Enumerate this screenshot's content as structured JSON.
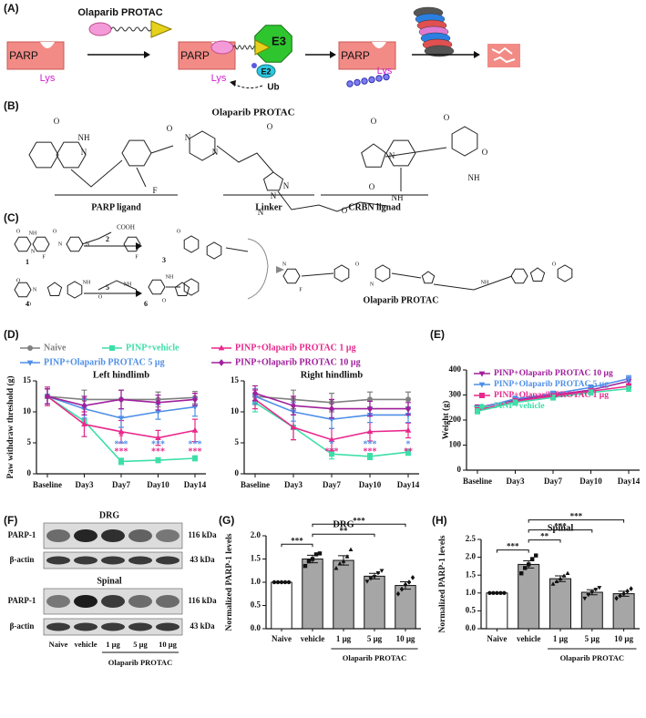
{
  "figure": {
    "panel_labels": [
      "(A)",
      "(B)",
      "(C)",
      "(D)",
      "(E)",
      "(F)",
      "(G)",
      "(H)"
    ],
    "scheme_a": {
      "protac_label": "Olaparib PROTAC",
      "parp": [
        "PARP",
        "PARP",
        "PARP"
      ],
      "lys": [
        "Lys",
        "Lys",
        "Lys"
      ],
      "e3": "E3",
      "e2": "E2",
      "ub": "Ub"
    },
    "structure_b": {
      "title": "Olaparib PROTAC",
      "parts": [
        "PARP ligand",
        "Linker",
        "CRBN lignad"
      ],
      "atoms": [
        "O",
        "NH",
        "N",
        "O",
        "N",
        "N",
        "F",
        "O",
        "N",
        "N",
        "N",
        "O",
        "NH",
        "O",
        "N",
        "O",
        "O",
        "NH",
        "O"
      ]
    },
    "synthesis_c": {
      "compounds": [
        "1",
        "2",
        "3",
        "4",
        "5",
        "6"
      ],
      "groups": [
        "COOH"
      ],
      "product": "Olaparib PROTAC",
      "atoms": [
        "O",
        "NH",
        "N",
        "F",
        "O",
        "N",
        "N",
        "F",
        "O",
        "O",
        "N",
        "O",
        "NH",
        "O",
        "NH",
        "NH",
        "O",
        "N",
        "F",
        "O",
        "N",
        "NH",
        "O"
      ]
    },
    "blot_f": {
      "sections": [
        "DRG",
        "Spinal"
      ],
      "proteins": [
        "PARP-1",
        "β-actin",
        "PARP-1",
        "β-actin"
      ],
      "sizes": [
        "116 kDa",
        "43 kDa",
        "116 kDa",
        "43 kDa"
      ],
      "lanes": [
        "Naive",
        "vehicle",
        "1 μg",
        "5 μg",
        "10 μg"
      ],
      "group_label": "Olaparib PROTAC"
    }
  },
  "chart_data": [
    {
      "type": "line",
      "title": "Left hindlimb",
      "y_label": "Paw withdraw threshold (g)",
      "legend": "above",
      "categories": [
        "Baseline",
        "Day3",
        "Day7",
        "Day10",
        "Day14"
      ],
      "ylim": [
        0,
        15
      ],
      "yticks": [
        0,
        5,
        10,
        15
      ],
      "series": [
        {
          "name": "Naive",
          "color": "#808080",
          "marker": "circle",
          "values": [
            12.5,
            12,
            12,
            12,
            12.3
          ],
          "errors": [
            1.2,
            1.5,
            1.5,
            1.2,
            1
          ]
        },
        {
          "name": "PINP+vehicle",
          "color": "#3ddfa8",
          "marker": "square",
          "values": [
            12.5,
            8.5,
            2,
            2.2,
            2.5
          ],
          "errors": [
            1.5,
            2.5,
            0.5,
            0.4,
            0.4
          ]
        },
        {
          "name": "PINP+Olaparib PROTAC 1 μg",
          "color": "#e8288c",
          "marker": "triangle",
          "values": [
            12.5,
            8,
            6.8,
            5.8,
            7
          ],
          "errors": [
            1.5,
            2,
            1.8,
            1.2,
            1.8
          ]
        },
        {
          "name": "PINP+Olaparib PROTAC 5 μg",
          "color": "#4f8fe8",
          "marker": "triangle-down",
          "values": [
            12.5,
            10.5,
            9,
            10,
            10.8
          ],
          "errors": [
            1.2,
            1.5,
            1.5,
            1.2,
            1.5
          ]
        },
        {
          "name": "PINP+Olaparib PROTAC 10 μg",
          "color": "#a0209c",
          "marker": "diamond",
          "values": [
            12.5,
            11,
            12,
            11.5,
            12
          ],
          "errors": [
            1.2,
            1.5,
            1.5,
            1.2,
            1
          ]
        }
      ],
      "annotations": [
        {
          "category": "Day7",
          "text": "*",
          "color": "#e8288c"
        },
        {
          "category": "Day7",
          "text": "***",
          "color": "#4f8fe8"
        },
        {
          "category": "Day7",
          "text": "***",
          "color": "#e8288c"
        },
        {
          "category": "Day10",
          "text": "***",
          "color": "#4f8fe8"
        },
        {
          "category": "Day10",
          "text": "***",
          "color": "#e8288c"
        },
        {
          "category": "Day14",
          "text": "***",
          "color": "#4f8fe8"
        },
        {
          "category": "Day14",
          "text": "***",
          "color": "#e8288c"
        }
      ]
    },
    {
      "type": "line",
      "title": "Right hindlimb",
      "categories": [
        "Baseline",
        "Day3",
        "Day7",
        "Day10",
        "Day14"
      ],
      "ylim": [
        0,
        15
      ],
      "yticks": [
        0,
        5,
        10,
        15
      ],
      "series": [
        {
          "color": "#808080",
          "marker": "circle",
          "values": [
            12.5,
            12,
            11.5,
            12,
            12
          ],
          "errors": [
            1.2,
            1.5,
            1.5,
            1.2,
            1.2
          ]
        },
        {
          "color": "#3ddfa8",
          "marker": "square",
          "values": [
            11.5,
            7.5,
            3.2,
            2.8,
            3.5
          ],
          "errors": [
            1.5,
            2,
            0.8,
            0.5,
            0.5
          ]
        },
        {
          "color": "#e8288c",
          "marker": "triangle",
          "values": [
            12,
            7.5,
            5.5,
            6.8,
            7
          ],
          "errors": [
            1.5,
            2,
            1.8,
            1.5,
            1.2
          ]
        },
        {
          "color": "#4f8fe8",
          "marker": "triangle-down",
          "values": [
            12.5,
            10,
            8.8,
            9.5,
            9.5
          ],
          "errors": [
            1.2,
            1.5,
            1.5,
            1.2,
            1.2
          ]
        },
        {
          "color": "#a0209c",
          "marker": "diamond",
          "values": [
            13,
            11,
            10.5,
            10.5,
            10.5
          ],
          "errors": [
            1.2,
            1.5,
            1.5,
            1.2,
            1
          ]
        }
      ],
      "annotations": [
        {
          "category": "Day7",
          "text": "*",
          "color": "#4f8fe8"
        },
        {
          "category": "Day7",
          "text": "***",
          "color": "#e8288c"
        },
        {
          "category": "Day10",
          "text": "***",
          "color": "#4f8fe8"
        },
        {
          "category": "Day10",
          "text": "***",
          "color": "#e8288c"
        },
        {
          "category": "Day14",
          "text": "*",
          "color": "#4f8fe8"
        },
        {
          "category": "Day14",
          "text": "**",
          "color": "#e8288c"
        }
      ]
    },
    {
      "type": "line",
      "y_label": "Weight (g)",
      "legend": "top-left",
      "categories": [
        "Baseline",
        "Day3",
        "Day7",
        "Day10",
        "Day14"
      ],
      "ylim": [
        0,
        400
      ],
      "yticks": [
        0,
        100,
        200,
        300,
        400
      ],
      "series": [
        {
          "name": "PINP+Olaparib PROTAC 10 μg",
          "color": "#a0209c",
          "marker": "triangle-down",
          "values": [
            250,
            280,
            300,
            320,
            355
          ],
          "errors": [
            10,
            10,
            10,
            10,
            12
          ]
        },
        {
          "name": "PINP+Olaparib PROTAC 5 μg",
          "color": "#4f8fe8",
          "marker": "triangle-down",
          "values": [
            245,
            285,
            305,
            330,
            365
          ],
          "errors": [
            10,
            10,
            10,
            10,
            12
          ]
        },
        {
          "name": "PINP+Olaparib PROTAC 1 μg",
          "color": "#e8288c",
          "marker": "square",
          "values": [
            240,
            275,
            295,
            315,
            335
          ],
          "errors": [
            10,
            10,
            10,
            10,
            10
          ]
        },
        {
          "name": "PINP+vehicle",
          "color": "#3ddfa8",
          "marker": "circle",
          "values": [
            235,
            270,
            290,
            310,
            325
          ],
          "errors": [
            10,
            10,
            10,
            10,
            10
          ]
        }
      ]
    },
    {
      "type": "bar",
      "title": "DRG",
      "y_label": "Normalized PARP-1 levels",
      "categories": [
        "Naive",
        "vehicle",
        "1 μg",
        "5 μg",
        "10 μg"
      ],
      "group": {
        "label": "Olaparib PROTAC",
        "categories": [
          "1 μg",
          "5 μg",
          "10 μg"
        ]
      },
      "colors": [
        "#ffffff",
        "#a6a6a6",
        "#a6a6a6",
        "#a6a6a6",
        "#a6a6a6"
      ],
      "values": [
        1,
        1.5,
        1.47,
        1.13,
        0.93
      ],
      "errors": [
        0,
        0.08,
        0.1,
        0.06,
        0.08
      ],
      "points": [
        [
          1,
          1,
          1,
          1,
          1
        ],
        [
          1.35,
          1.45,
          1.5,
          1.6,
          1.62
        ],
        [
          1.3,
          1.4,
          1.45,
          1.55,
          1.7
        ],
        [
          1.02,
          1.08,
          1.12,
          1.2,
          1.25
        ],
        [
          0.75,
          0.85,
          0.95,
          1.0,
          1.1
        ]
      ],
      "ylim": [
        0,
        2
      ],
      "yticks": [
        {
          "value": 0,
          "label": "0.0"
        },
        0.5,
        {
          "value": 1,
          "label": "1.0"
        },
        1.5,
        {
          "value": 2,
          "label": "2.0"
        }
      ],
      "significance": [
        {
          "from": "Naive",
          "to": "vehicle",
          "text": "***"
        },
        {
          "from": "vehicle",
          "to": "5 μg",
          "text": "**"
        },
        {
          "from": "vehicle",
          "to": "10 μg",
          "text": "***"
        }
      ]
    },
    {
      "type": "bar",
      "title": "Spinal",
      "y_label": "Normalized PARP-1 levels",
      "categories": [
        "Naive",
        "vehicle",
        "1 μg",
        "5 μg",
        "10 μg"
      ],
      "group": {
        "label": "Olaparib PROTAC",
        "categories": [
          "1 μg",
          "5 μg",
          "10 μg"
        ]
      },
      "colors": [
        "#ffffff",
        "#a6a6a6",
        "#a6a6a6",
        "#a6a6a6",
        "#a6a6a6"
      ],
      "values": [
        1,
        1.8,
        1.4,
        1.02,
        0.98
      ],
      "errors": [
        0,
        0.1,
        0.08,
        0.07,
        0.07
      ],
      "points": [
        [
          1,
          1,
          1,
          1,
          1
        ],
        [
          1.55,
          1.7,
          1.8,
          1.95,
          2.05
        ],
        [
          1.25,
          1.32,
          1.4,
          1.48,
          1.55
        ],
        [
          0.85,
          0.95,
          1.02,
          1.1,
          1.15
        ],
        [
          0.85,
          0.92,
          0.98,
          1.05,
          1.12
        ]
      ],
      "ylim": [
        0,
        2.5
      ],
      "yticks": [
        {
          "value": 0,
          "label": "0.0"
        },
        0.5,
        {
          "value": 1,
          "label": "1.0"
        },
        1.5,
        {
          "value": 2,
          "label": "2.0"
        },
        2.5
      ],
      "significance": [
        {
          "from": "Naive",
          "to": "vehicle",
          "text": "***"
        },
        {
          "from": "vehicle",
          "to": "1 μg",
          "text": "**"
        },
        {
          "from": "vehicle",
          "to": "5 μg",
          "text": "***"
        },
        {
          "from": "vehicle",
          "to": "10 μg",
          "text": "***"
        }
      ]
    }
  ]
}
